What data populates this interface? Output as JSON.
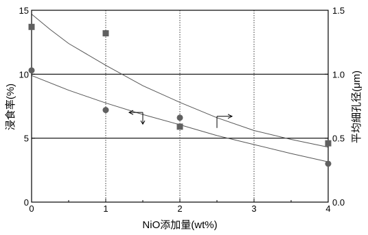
{
  "chart_data": {
    "type": "scatter",
    "xlabel": "NiO添加量(wt%)",
    "ylabel_left": "浸食率(%)",
    "ylabel_right": "平均細孔径(μm)",
    "xlim": [
      0,
      4
    ],
    "ylim_left": [
      0,
      15
    ],
    "ylim_right": [
      0,
      1.5
    ],
    "x_ticks": [
      "0",
      "1",
      "2",
      "3",
      "4"
    ],
    "y_left_ticks": [
      "0",
      "5",
      "10",
      "15"
    ],
    "y_right_ticks": [
      "0.0",
      "0.5",
      "1.0",
      "1.5"
    ],
    "gridlines_y_left": [
      5,
      10
    ],
    "gridlines_x_dotted": [
      1,
      2,
      3
    ],
    "series": [
      {
        "marker": "circle",
        "axis": "left",
        "x": [
          0,
          1,
          2,
          4
        ],
        "values": [
          10.3,
          7.2,
          6.6,
          3.0
        ],
        "fit_curve_x": [
          0,
          0.5,
          1,
          1.5,
          2,
          2.5,
          3,
          3.5,
          4
        ],
        "fit_curve_y": [
          9.9,
          8.75,
          7.75,
          6.85,
          6.05,
          5.2,
          4.5,
          3.8,
          3.15
        ],
        "arrow_direction": "left"
      },
      {
        "marker": "square",
        "axis": "right",
        "x": [
          0,
          1,
          2,
          4
        ],
        "values": [
          1.37,
          1.32,
          0.59,
          0.46
        ],
        "fit_curve_x": [
          0,
          0.25,
          0.5,
          1,
          1.5,
          2,
          2.5,
          3,
          3.5,
          4
        ],
        "fit_curve_y": [
          1.47,
          1.35,
          1.24,
          1.07,
          0.91,
          0.78,
          0.66,
          0.56,
          0.49,
          0.43
        ],
        "arrow_direction": "right"
      }
    ],
    "colors": {
      "markers": "#606060",
      "curves": "#555555",
      "axes": "#000000"
    }
  }
}
